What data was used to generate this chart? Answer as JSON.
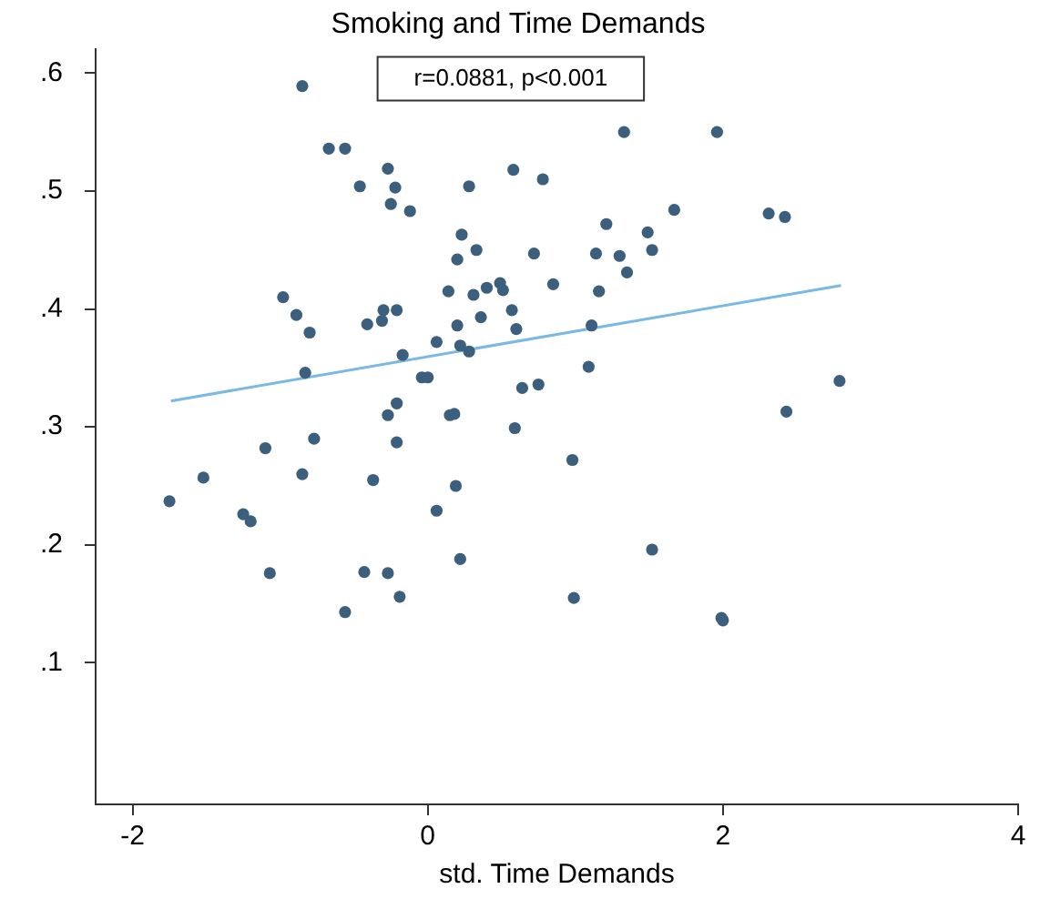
{
  "chart_data": {
    "type": "scatter",
    "title": "Smoking and Time Demands",
    "xlabel": "std. Time Demands",
    "annotations": [
      "r=0.0881, p<0.001"
    ],
    "xlim": [
      -2.25,
      4
    ],
    "xticks": [
      -2,
      0,
      2,
      4
    ],
    "ylim": [
      -0.02,
      0.62
    ],
    "yticks": [
      {
        "value": 0.1,
        "label": ".1"
      },
      {
        "value": 0.2,
        "label": ".2"
      },
      {
        "value": 0.3,
        "label": ".3"
      },
      {
        "value": 0.4,
        "label": ".4"
      },
      {
        "value": 0.5,
        "label": ".5"
      },
      {
        "value": 0.6,
        "label": ".6"
      }
    ],
    "grid": false,
    "legend": false,
    "marker": "circle",
    "series": [
      {
        "color": "#3b5f7d",
        "x": [
          -0.85,
          -0.67,
          -0.56,
          -0.27,
          -0.46,
          -0.22,
          -0.25,
          -0.12,
          0.28,
          0.58,
          0.78,
          1.33,
          1.96,
          1.67,
          1.21,
          2.31,
          2.42,
          1.49,
          0.23,
          0.2,
          0.33,
          0.72,
          1.14,
          1.3,
          1.52,
          1.35,
          0.14,
          0.31,
          0.4,
          0.49,
          0.51,
          0.85,
          1.16,
          0.57,
          0.2,
          0.36,
          0.6,
          1.11,
          0.06,
          0.22,
          0.28,
          -0.98,
          -0.89,
          -0.8,
          -0.3,
          -0.21,
          -0.41,
          -0.31,
          -0.17,
          -0.83,
          -0.04,
          0.0,
          -0.21,
          -0.27,
          0.15,
          0.18,
          -0.77,
          -1.1,
          -0.21,
          -1.52,
          -0.85,
          -0.37,
          -1.75,
          -1.25,
          -1.2,
          0.06,
          -1.07,
          -0.43,
          -0.27,
          -0.19,
          -0.56,
          1.09,
          0.64,
          0.75,
          0.59,
          0.98,
          2.79,
          2.43,
          0.19,
          0.22,
          1.52,
          0.99,
          1.99,
          2.0
        ],
        "values": [
          0.589,
          0.536,
          0.536,
          0.519,
          0.504,
          0.503,
          0.489,
          0.483,
          0.504,
          0.518,
          0.51,
          0.55,
          0.55,
          0.484,
          0.472,
          0.481,
          0.478,
          0.465,
          0.463,
          0.442,
          0.45,
          0.447,
          0.447,
          0.445,
          0.45,
          0.431,
          0.415,
          0.412,
          0.418,
          0.422,
          0.416,
          0.421,
          0.415,
          0.399,
          0.386,
          0.393,
          0.383,
          0.386,
          0.372,
          0.369,
          0.364,
          0.41,
          0.395,
          0.38,
          0.399,
          0.399,
          0.387,
          0.39,
          0.361,
          0.346,
          0.342,
          0.342,
          0.32,
          0.31,
          0.31,
          0.311,
          0.29,
          0.282,
          0.287,
          0.257,
          0.26,
          0.255,
          0.237,
          0.226,
          0.22,
          0.229,
          0.176,
          0.177,
          0.176,
          0.156,
          0.143,
          0.351,
          0.333,
          0.336,
          0.299,
          0.272,
          0.339,
          0.313,
          0.25,
          0.188,
          0.196,
          0.155,
          0.138,
          0.136
        ]
      },
      {
        "type": "line",
        "color": "#7ab8e6",
        "marker": "none",
        "x": [
          -1.74,
          2.8
        ],
        "values": [
          0.322,
          0.42
        ]
      }
    ]
  }
}
